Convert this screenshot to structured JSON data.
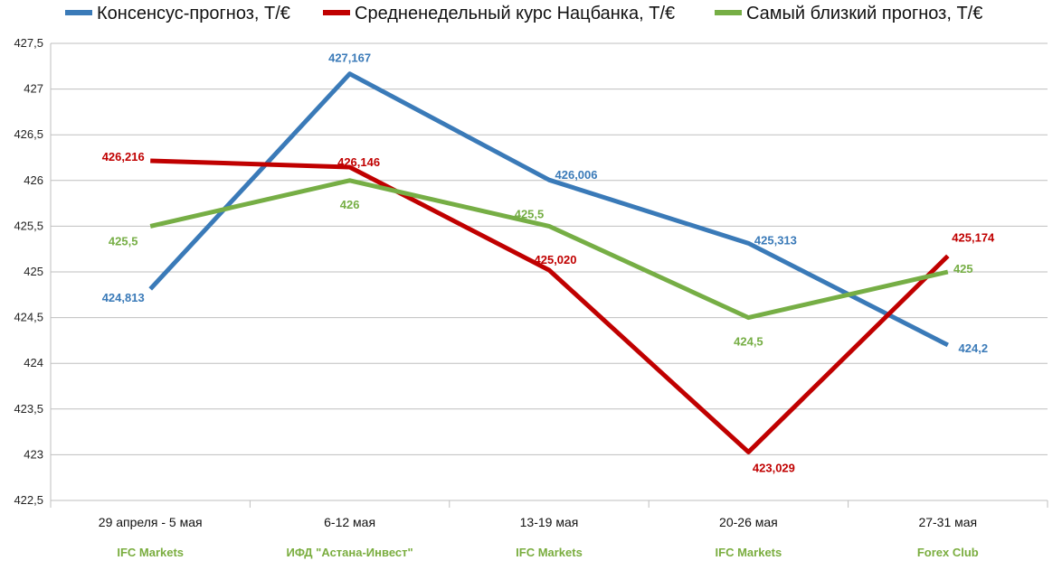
{
  "chart_data": {
    "type": "line",
    "title": "",
    "xlabel": "",
    "ylabel": "",
    "ylim": [
      422.5,
      427.5
    ],
    "y_ticks": [
      "422,5",
      "423",
      "423,5",
      "424",
      "424,5",
      "425",
      "425,5",
      "426",
      "426,5",
      "427",
      "427,5"
    ],
    "grid": "horizontal",
    "legend_position": "top",
    "categories": [
      "29 апреля - 5 мая",
      "6-12 мая",
      "13-19 мая",
      "20-26 мая",
      "27-31 мая"
    ],
    "sub_labels": [
      "IFC Markets",
      "ИФД \"Астана-Инвест\"",
      "IFC Markets",
      "IFC Markets",
      "Forex Club"
    ],
    "sub_label_color": "#7aad3f",
    "series": [
      {
        "name": "Консенсус-прогноз, Т/€",
        "color": "#3a7ab8",
        "values": [
          424.813,
          427.167,
          426.006,
          425.313,
          424.2
        ],
        "labels": [
          "424,813",
          "427,167",
          "426,006",
          "425,313",
          "424,2"
        ]
      },
      {
        "name": "Средненедельный курс Нацбанка, Т/€",
        "color": "#c00000",
        "values": [
          426.216,
          426.146,
          425.02,
          423.029,
          425.174
        ],
        "labels": [
          "426,216",
          "426,146",
          "425,020",
          "423,029",
          "425,174"
        ]
      },
      {
        "name": "Самый близкий прогноз, Т/€",
        "color": "#76ae45",
        "values": [
          425.5,
          426.0,
          425.5,
          424.5,
          425.0
        ],
        "labels": [
          "425,5",
          "426",
          "425,5",
          "424,5",
          "425"
        ]
      }
    ]
  }
}
